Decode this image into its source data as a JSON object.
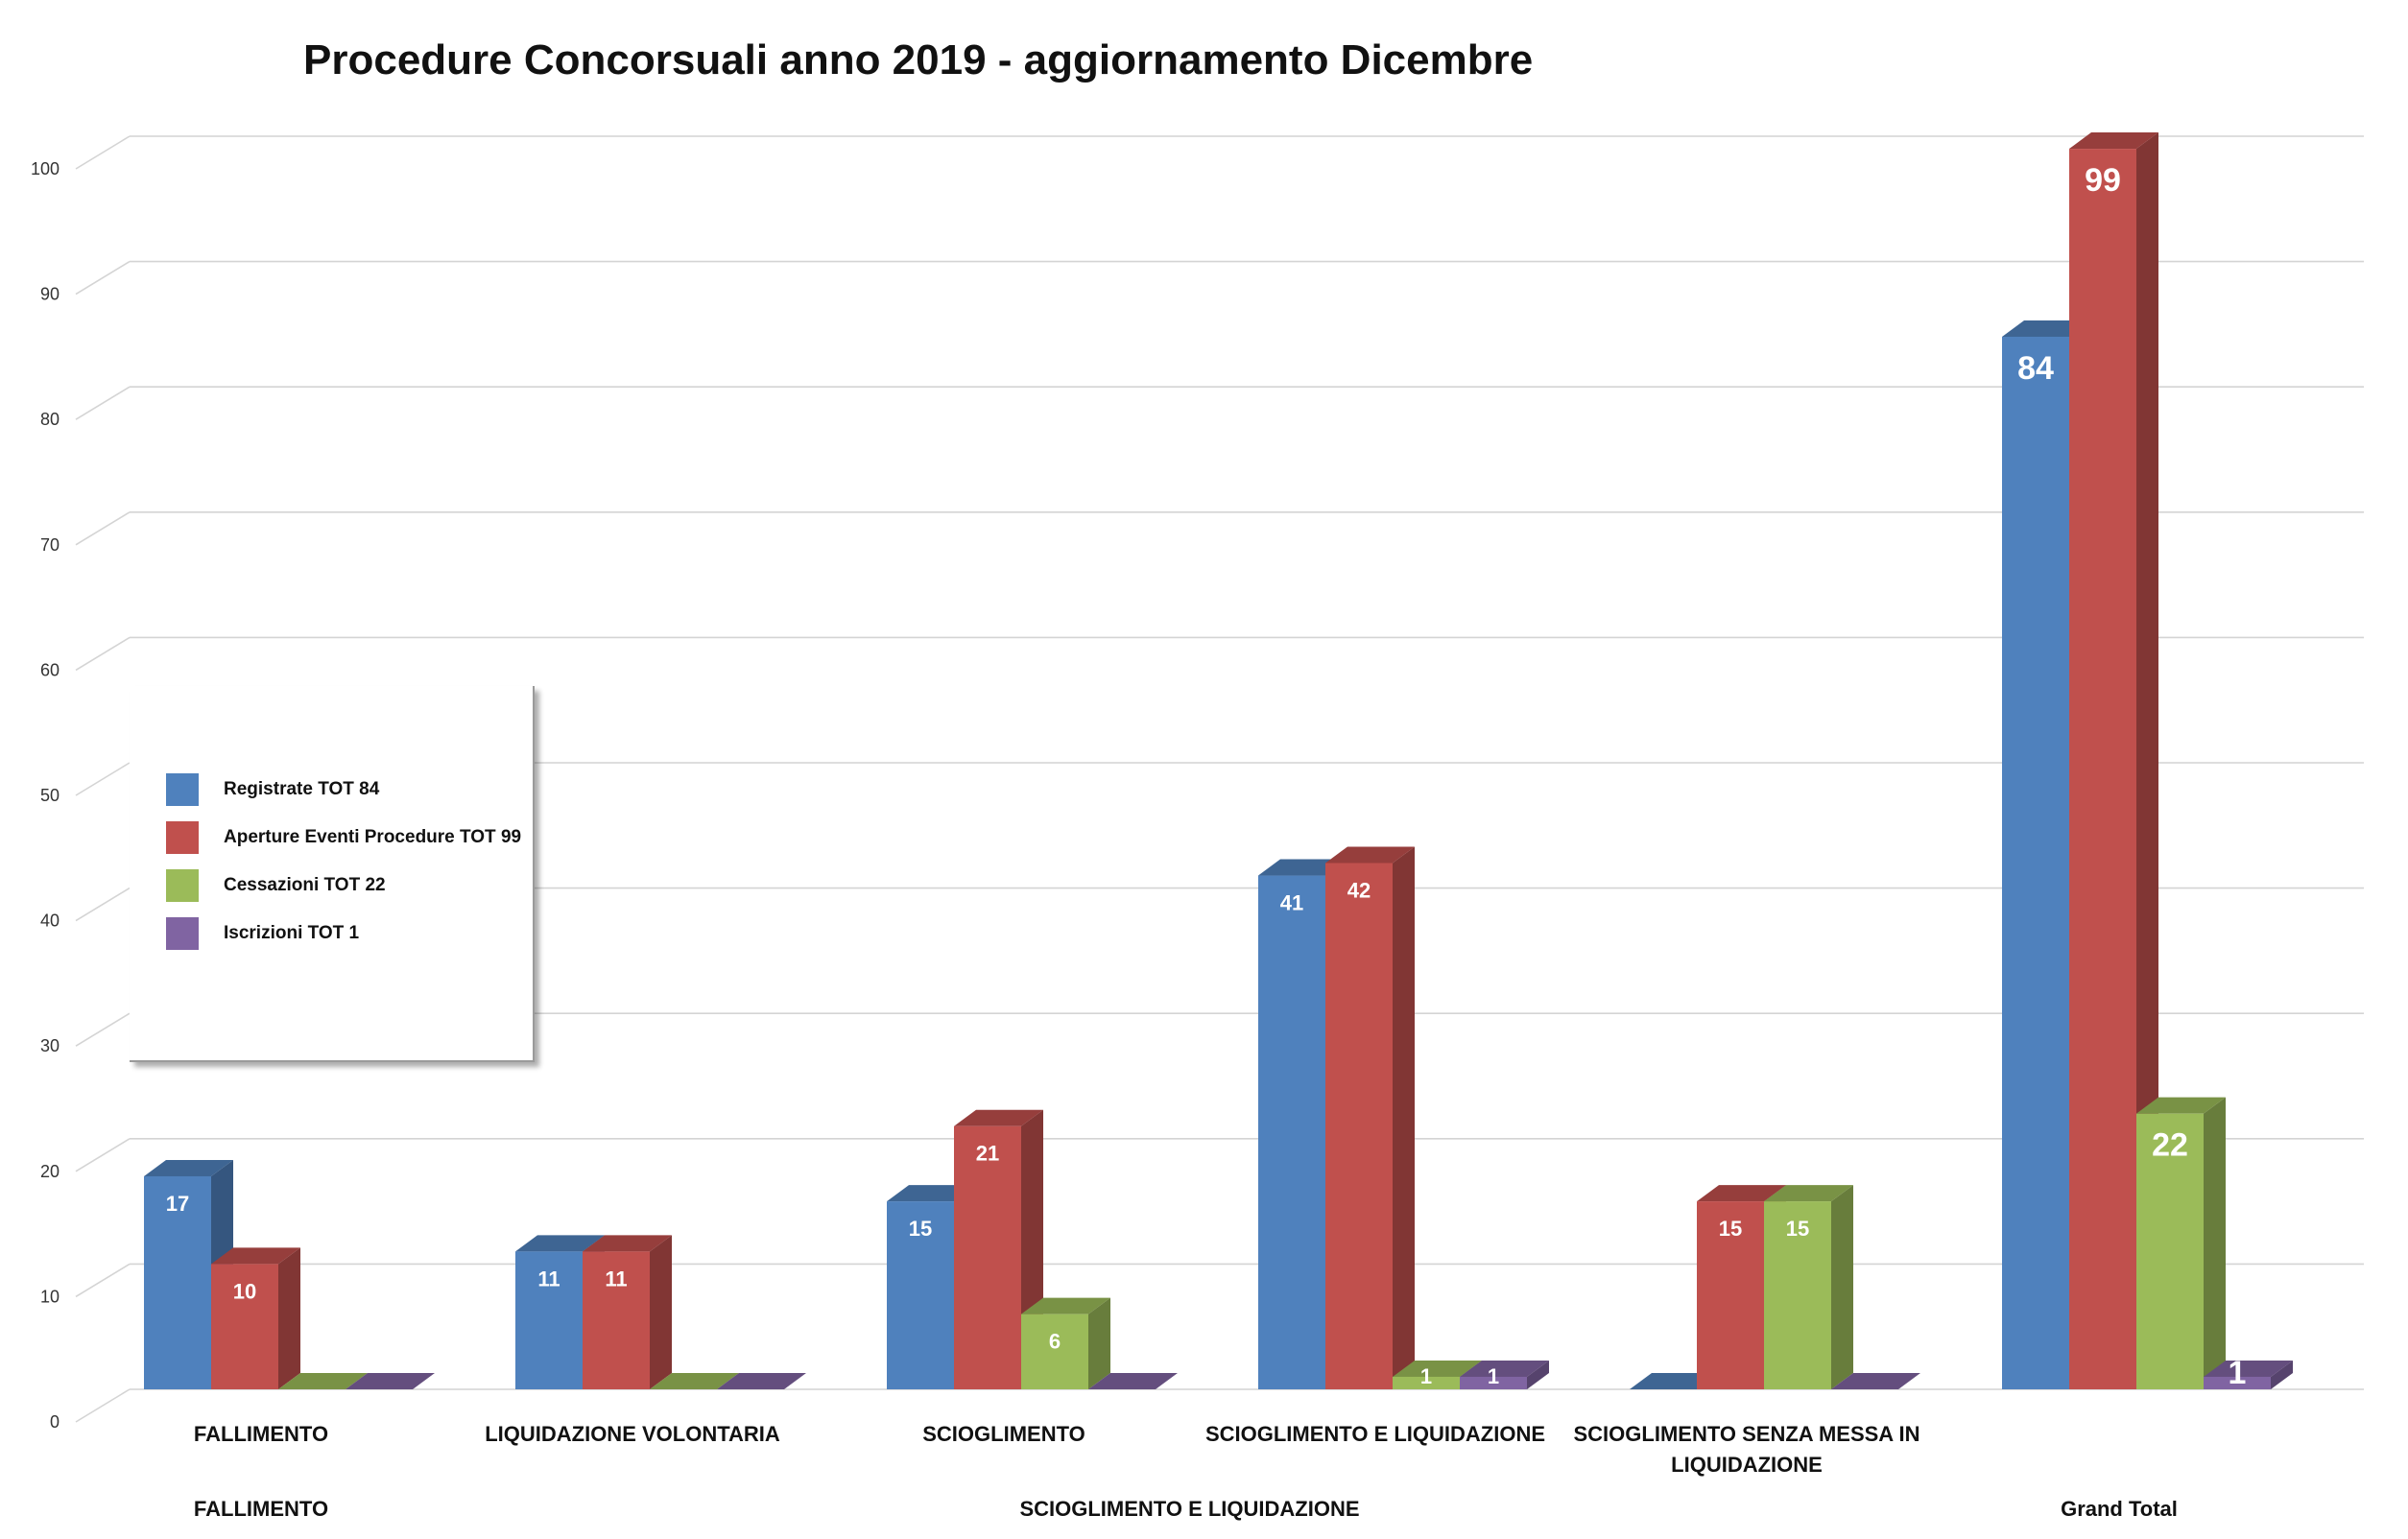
{
  "chart_data": {
    "type": "bar",
    "title": "Procedure Concorsuali anno 2019 - aggiornamento Dicembre",
    "xlabel": "",
    "ylabel": "",
    "ylim": [
      0,
      100
    ],
    "y_ticks": [
      0,
      10,
      20,
      30,
      40,
      50,
      60,
      70,
      80,
      90,
      100
    ],
    "categories": [
      "FALLIMENTO",
      "LIQUIDAZIONE VOLONTARIA",
      "SCIOGLIMENTO",
      "SCIOGLIMENTO E LIQUIDAZIONE",
      "SCIOGLIMENTO SENZA MESSA IN LIQUIDAZIONE",
      ""
    ],
    "category_label_lines": [
      [
        "FALLIMENTO"
      ],
      [
        "LIQUIDAZIONE VOLONTARIA"
      ],
      [
        "SCIOGLIMENTO"
      ],
      [
        "SCIOGLIMENTO E LIQUIDAZIONE"
      ],
      [
        "SCIOGLIMENTO SENZA MESSA IN",
        "LIQUIDAZIONE"
      ],
      []
    ],
    "groups": [
      {
        "label": "FALLIMENTO",
        "categories": [
          0
        ]
      },
      {
        "label": "SCIOGLIMENTO E LIQUIDAZIONE",
        "categories": [
          1,
          2,
          3,
          4
        ]
      },
      {
        "label": "Grand Total",
        "categories": [
          5
        ]
      }
    ],
    "series": [
      {
        "name": "Registrate TOT 84",
        "color": "#4F81BD",
        "values": [
          17,
          11,
          15,
          41,
          0,
          84
        ]
      },
      {
        "name": "Aperture Eventi Procedure TOT 99",
        "color": "#C0504D",
        "values": [
          10,
          11,
          21,
          42,
          15,
          99
        ]
      },
      {
        "name": "Cessazioni TOT 22",
        "color": "#9BBB59",
        "values": [
          0,
          0,
          6,
          1,
          15,
          22
        ]
      },
      {
        "name": "Iscrizioni TOT 1",
        "color": "#8064A2",
        "values": [
          0,
          0,
          0,
          1,
          0,
          1
        ]
      }
    ],
    "grid": true,
    "legend_position": "left"
  }
}
